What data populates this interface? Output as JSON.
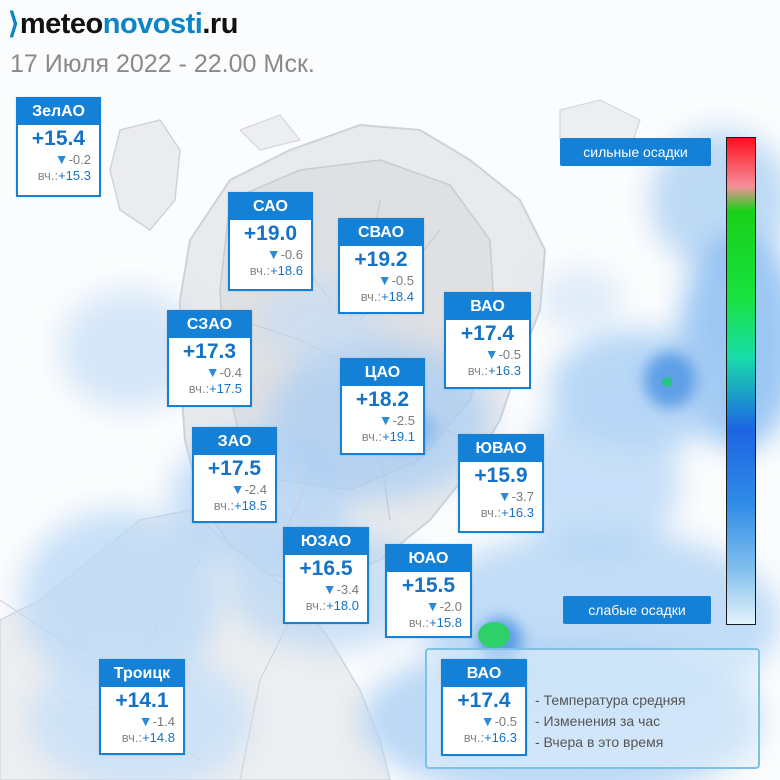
{
  "brand": {
    "prefix": "⟩",
    "part1": "meteo",
    "part2": "novosti",
    "part3": ".ru"
  },
  "date": "17 Июля 2022 - 22.00 Мск.",
  "colors": {
    "card": "#1480d6",
    "temp": "#1473c6"
  },
  "districts": [
    {
      "name": "ЗелАО",
      "temp": "+15.4",
      "change": "-0.2",
      "yesterday": "+15.3"
    },
    {
      "name": "САО",
      "temp": "+19.0",
      "change": "-0.6",
      "yesterday": "+18.6"
    },
    {
      "name": "СВАО",
      "temp": "+19.2",
      "change": "-0.5",
      "yesterday": "+18.4"
    },
    {
      "name": "ВАО",
      "temp": "+17.4",
      "change": "-0.5",
      "yesterday": "+16.3"
    },
    {
      "name": "СЗАО",
      "temp": "+17.3",
      "change": "-0.4",
      "yesterday": "+17.5"
    },
    {
      "name": "ЦАО",
      "temp": "+18.2",
      "change": "-2.5",
      "yesterday": "+19.1"
    },
    {
      "name": "ЗАО",
      "temp": "+17.5",
      "change": "-2.4",
      "yesterday": "+18.5"
    },
    {
      "name": "ЮВАО",
      "temp": "+15.9",
      "change": "-3.7",
      "yesterday": "+16.3"
    },
    {
      "name": "ЮЗАО",
      "temp": "+16.5",
      "change": "-3.4",
      "yesterday": "+18.0"
    },
    {
      "name": "ЮАО",
      "temp": "+15.5",
      "change": "-2.0",
      "yesterday": "+15.8"
    },
    {
      "name": "Троицк",
      "temp": "+14.1",
      "change": "-1.4",
      "yesterday": "+14.8"
    }
  ],
  "legend": {
    "heavy": "сильные осадки",
    "light": "слабые осадки",
    "sample": {
      "name": "ВАО",
      "temp": "+17.4",
      "change": "-0.5",
      "yesterday": "+16.3"
    },
    "items": [
      "- Температура средняя",
      "- Изменения за час",
      "- Вчера в это время"
    ]
  },
  "yesterday_prefix": "вч.:",
  "change_icon": "down-triangle-icon"
}
